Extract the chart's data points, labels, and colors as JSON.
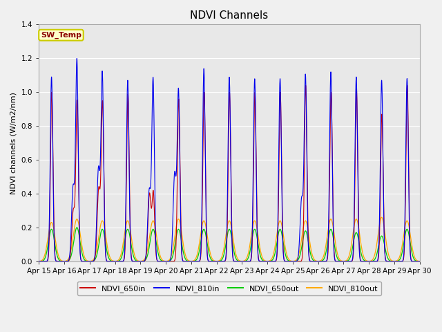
{
  "title": "NDVI Channels",
  "ylabel": "NDVI channels (W/m2/nm)",
  "ylim": [
    0.0,
    1.4
  ],
  "xlim": [
    0,
    15
  ],
  "fig_bg_color": "#f0f0f0",
  "plot_bg_color": "#e8e8e8",
  "grid_color": "#ffffff",
  "legend_entries": [
    "NDVI_650in",
    "NDVI_810in",
    "NDVI_650out",
    "NDVI_810out"
  ],
  "legend_colors": [
    "#cc0000",
    "#0000ee",
    "#00cc00",
    "#ffaa00"
  ],
  "sw_temp_label": "SW_Temp",
  "sw_temp_text_color": "#8b0000",
  "sw_temp_bg_color": "#ffffcc",
  "sw_temp_border_color": "#cccc00",
  "title_fontsize": 11,
  "tick_fontsize": 7.5,
  "legend_fontsize": 8,
  "ylabel_fontsize": 8,
  "tick_positions": [
    0,
    1,
    2,
    3,
    4,
    5,
    6,
    7,
    8,
    9,
    10,
    11,
    12,
    13,
    14,
    15
  ],
  "tick_labels": [
    "Apr 15",
    "Apr 16",
    "Apr 17",
    "Apr 18",
    "Apr 19",
    "Apr 20",
    "Apr 21",
    "Apr 22",
    "Apr 23",
    "Apr 24",
    "Apr 25",
    "Apr 26",
    "Apr 27",
    "Apr 28",
    "Apr 29",
    "Apr 30"
  ],
  "yticks": [
    0.0,
    0.2,
    0.4,
    0.6,
    0.8,
    1.0,
    1.2,
    1.4
  ],
  "n_days": 15,
  "peak_heights_810in": [
    1.09,
    1.18,
    1.1,
    1.07,
    1.07,
    1.0,
    1.14,
    1.09,
    1.08,
    1.08,
    1.09,
    1.12,
    1.09,
    1.07,
    1.08
  ],
  "peak_heights_650in": [
    1.0,
    0.94,
    0.93,
    0.99,
    0.4,
    0.96,
    1.0,
    1.0,
    1.0,
    1.0,
    1.04,
    1.0,
    1.02,
    0.87,
    1.04
  ],
  "peak_heights_810out": [
    0.23,
    0.25,
    0.24,
    0.24,
    0.24,
    0.25,
    0.24,
    0.24,
    0.24,
    0.24,
    0.24,
    0.25,
    0.25,
    0.26,
    0.24
  ],
  "peak_heights_650out": [
    0.19,
    0.2,
    0.19,
    0.19,
    0.19,
    0.19,
    0.19,
    0.19,
    0.19,
    0.19,
    0.18,
    0.19,
    0.17,
    0.15,
    0.19
  ],
  "second_peak_810in": [
    0.0,
    0.44,
    0.55,
    0.0,
    0.42,
    0.52,
    0.0,
    0.0,
    0.0,
    0.0,
    0.37,
    0.0,
    0.0,
    0.0,
    0.0
  ],
  "second_peak_650in": [
    0.0,
    0.3,
    0.43,
    0.0,
    0.4,
    0.0,
    0.0,
    0.0,
    0.0,
    0.0,
    0.0,
    0.0,
    0.0,
    0.0,
    0.0
  ]
}
